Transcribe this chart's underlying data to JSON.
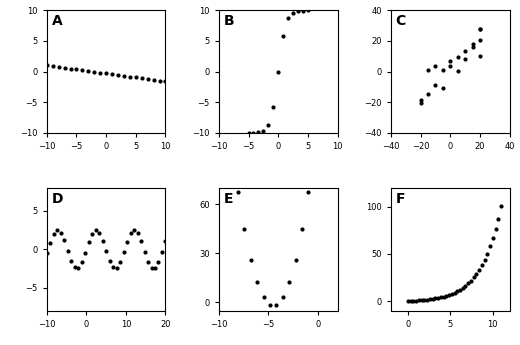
{
  "A": {
    "label": "A",
    "xlim": [
      -10,
      10
    ],
    "ylim": [
      -10,
      10
    ],
    "xticks": [
      -10,
      -5,
      0,
      5,
      10
    ],
    "yticks": [
      -10,
      -5,
      0,
      5,
      10
    ]
  },
  "B": {
    "label": "B",
    "xlim": [
      -10,
      10
    ],
    "ylim": [
      -10,
      10
    ],
    "xticks": [
      -10,
      -5,
      0,
      5,
      10
    ],
    "yticks": [
      -10,
      -5,
      0,
      5,
      10
    ]
  },
  "C": {
    "label": "C",
    "xlim": [
      -40,
      40
    ],
    "ylim": [
      -40,
      40
    ],
    "xticks": [
      -40,
      -20,
      0,
      20,
      40
    ],
    "yticks": [
      -40,
      -20,
      0,
      20,
      40
    ]
  },
  "D": {
    "label": "D",
    "xlim": [
      -10,
      20
    ],
    "ylim": [
      -8,
      8
    ],
    "xticks": [
      -10,
      0,
      10,
      20
    ],
    "yticks": [
      -5,
      0,
      5
    ]
  },
  "E": {
    "label": "E",
    "xlim": [
      -10,
      2
    ],
    "ylim": [
      -5,
      70
    ],
    "xticks": [
      -10,
      -5,
      0
    ],
    "yticks": [
      0,
      30,
      60
    ]
  },
  "F": {
    "label": "F",
    "xlim": [
      -2,
      12
    ],
    "ylim": [
      -10,
      120
    ],
    "xticks": [
      0,
      5,
      10
    ],
    "yticks": [
      0,
      50,
      100
    ]
  },
  "dot_size": 4,
  "dot_color": "black",
  "label_fontsize": 10,
  "label_fontweight": "bold",
  "bg_color": "white",
  "tick_fontsize": 6
}
